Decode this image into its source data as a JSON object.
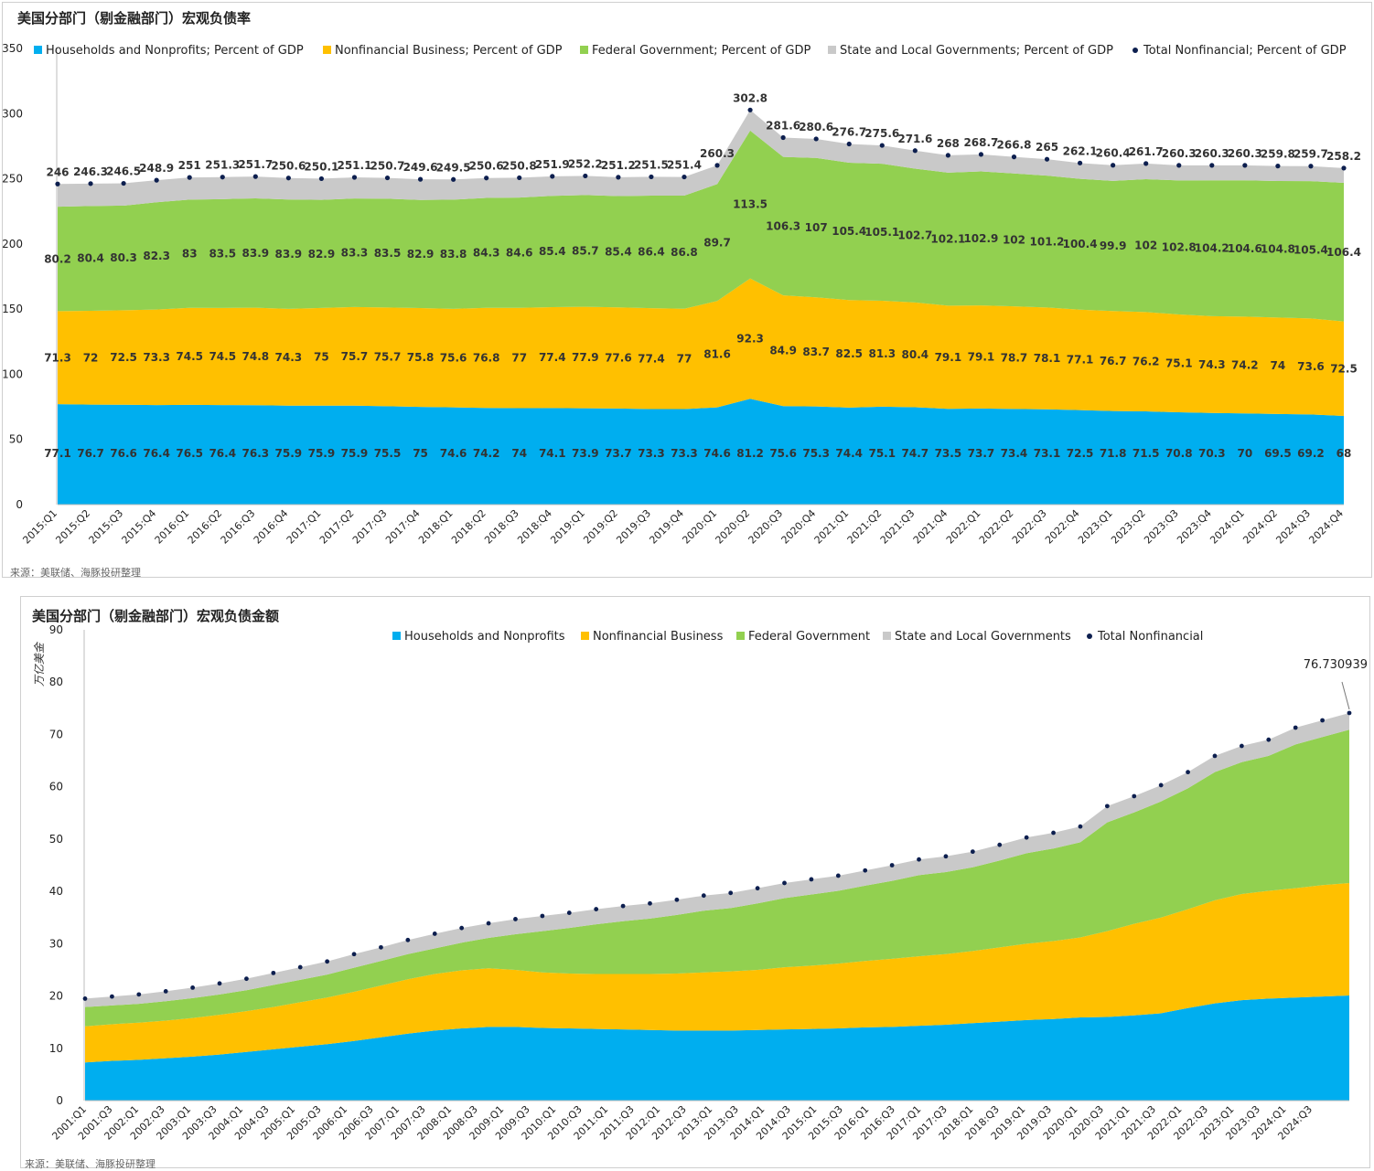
{
  "chart_data": [
    {
      "type": "area",
      "title": "美国分部门（剔金融部门）宏观负债率",
      "source": "来源：美联储、海豚投研整理",
      "ylim": [
        0,
        350
      ],
      "yticks": [
        "0",
        "50",
        "100",
        "150",
        "200",
        "250",
        "300",
        "350"
      ],
      "legend_position": "top",
      "categories": [
        "2015:Q1",
        "2015:Q2",
        "2015:Q3",
        "2015:Q4",
        "2016:Q1",
        "2016:Q2",
        "2016:Q3",
        "2016:Q4",
        "2017:Q1",
        "2017:Q2",
        "2017:Q3",
        "2017:Q4",
        "2018:Q1",
        "2018:Q2",
        "2018:Q3",
        "2018:Q4",
        "2019:Q1",
        "2019:Q2",
        "2019:Q3",
        "2019:Q4",
        "2020:Q1",
        "2020:Q2",
        "2020:Q3",
        "2020:Q4",
        "2021:Q1",
        "2021:Q2",
        "2021:Q3",
        "2021:Q4",
        "2022:Q1",
        "2022:Q2",
        "2022:Q3",
        "2022:Q4",
        "2023:Q1",
        "2023:Q2",
        "2023:Q3",
        "2023:Q4",
        "2024:Q1",
        "2024:Q2",
        "2024:Q3",
        "2024:Q4"
      ],
      "series": [
        {
          "name": "Households and Nonprofits; Percent of GDP",
          "color": "#00aeef",
          "values": [
            77.1,
            76.7,
            76.6,
            76.4,
            76.5,
            76.4,
            76.3,
            75.9,
            75.9,
            75.9,
            75.5,
            75,
            74.6,
            74.2,
            74,
            74.1,
            73.9,
            73.7,
            73.3,
            73.3,
            74.6,
            81.2,
            75.6,
            75.3,
            74.4,
            75.1,
            74.7,
            73.5,
            73.7,
            73.4,
            73.1,
            72.5,
            71.8,
            71.5,
            70.8,
            70.3,
            70,
            69.5,
            69.2,
            68
          ]
        },
        {
          "name": "Nonfinancial Business; Percent of GDP",
          "color": "#ffc000",
          "values": [
            71.3,
            72,
            72.5,
            73.3,
            74.5,
            74.5,
            74.8,
            74.3,
            75,
            75.7,
            75.7,
            75.8,
            75.6,
            76.8,
            77,
            77.4,
            77.9,
            77.6,
            77.4,
            77,
            81.6,
            92.3,
            84.9,
            83.7,
            82.5,
            81.3,
            80.4,
            79.1,
            79.1,
            78.7,
            78.1,
            77.1,
            76.7,
            76.2,
            75.1,
            74.3,
            74.2,
            74,
            73.6,
            72.5
          ]
        },
        {
          "name": "Federal Government; Percent of GDP",
          "color": "#92d050",
          "values": [
            80.2,
            80.4,
            80.3,
            82.3,
            83,
            83.5,
            83.9,
            83.9,
            82.9,
            83.3,
            83.5,
            82.9,
            83.8,
            84.3,
            84.6,
            85.4,
            85.7,
            85.4,
            86.4,
            86.8,
            89.7,
            113.5,
            106.3,
            107,
            105.4,
            105.1,
            102.7,
            102.1,
            102.9,
            102,
            101.2,
            100.4,
            99.9,
            102,
            102.8,
            104.2,
            104.6,
            104.8,
            105.4,
            106.4
          ]
        },
        {
          "name": "State and Local Governments; Percent of GDP",
          "color": "#c9c9c9",
          "values": [
            17.4,
            17.2,
            17.1,
            16.9,
            17,
            16.9,
            16.7,
            16.5,
            16.3,
            16.2,
            16,
            15.9,
            15.5,
            15.3,
            15.2,
            15,
            14.7,
            14.5,
            14.4,
            14.3,
            14.4,
            15.8,
            14.8,
            14.6,
            14.4,
            14.1,
            13.8,
            13.3,
            13,
            12.7,
            12.6,
            12.1,
            12,
            12,
            11.6,
            11.5,
            11.5,
            11.5,
            11.5,
            11.3
          ]
        },
        {
          "name": "Total Nonfinancial; Percent of GDP",
          "color": "#0d1f4f",
          "markers": true,
          "values": [
            246,
            246.3,
            246.5,
            248.9,
            251,
            251.3,
            251.7,
            250.6,
            250.1,
            251.1,
            250.7,
            249.6,
            249.5,
            250.6,
            250.8,
            251.9,
            252.2,
            251.2,
            251.5,
            251.4,
            260.3,
            302.8,
            281.6,
            280.6,
            276.7,
            275.6,
            271.6,
            268,
            268.7,
            266.8,
            265,
            262.1,
            260.4,
            261.7,
            260.3,
            260.3,
            260.3,
            259.8,
            259.7,
            258.2
          ]
        }
      ]
    },
    {
      "type": "area",
      "title": "美国分部门（剔金融部门）宏观负债金额",
      "source": "来源：美联储、海豚投研整理",
      "ylabel": "万亿美金",
      "ylim": [
        0,
        90
      ],
      "yticks": [
        "0",
        "10",
        "20",
        "30",
        "40",
        "50",
        "60",
        "70",
        "80",
        "90"
      ],
      "legend_position": "top",
      "annotation": "76.730939",
      "categories": [
        "2001:Q1",
        "2001:Q3",
        "2002:Q1",
        "2002:Q3",
        "2003:Q1",
        "2003:Q3",
        "2004:Q1",
        "2004:Q3",
        "2005:Q1",
        "2005:Q3",
        "2006:Q1",
        "2006:Q3",
        "2007:Q1",
        "2007:Q3",
        "2008:Q1",
        "2008:Q3",
        "2009:Q1",
        "2009:Q3",
        "2010:Q1",
        "2010:Q3",
        "2011:Q1",
        "2011:Q3",
        "2012:Q1",
        "2012:Q3",
        "2013:Q1",
        "2013:Q3",
        "2014:Q1",
        "2014:Q3",
        "2015:Q1",
        "2015:Q3",
        "2016:Q1",
        "2016:Q3",
        "2017:Q1",
        "2017:Q3",
        "2018:Q1",
        "2018:Q3",
        "2019:Q1",
        "2019:Q3",
        "2020:Q1",
        "2020:Q3",
        "2021:Q1",
        "2021:Q3",
        "2022:Q1",
        "2022:Q3",
        "2023:Q1",
        "2023:Q3",
        "2024:Q1",
        "2024:Q3"
      ],
      "x_start": "2001:Q1",
      "x_end": "2024:Q4",
      "series": [
        {
          "name": "Households and Nonprofits",
          "color": "#00aeef",
          "values": [
            7.3,
            7.6,
            7.8,
            8.1,
            8.4,
            8.8,
            9.3,
            9.8,
            10.3,
            10.8,
            11.4,
            12.1,
            12.8,
            13.4,
            13.8,
            14.1,
            14.1,
            13.9,
            13.8,
            13.7,
            13.6,
            13.5,
            13.4,
            13.4,
            13.4,
            13.5,
            13.6,
            13.7,
            13.8,
            14.0,
            14.1,
            14.3,
            14.5,
            14.8,
            15.1,
            15.4,
            15.6,
            15.9,
            16.0,
            16.3,
            16.7,
            17.7,
            18.6,
            19.2,
            19.5,
            19.7,
            19.9,
            20.1
          ]
        },
        {
          "name": "Nonfinancial Business",
          "color": "#ffc000",
          "values": [
            6.9,
            7.0,
            7.1,
            7.2,
            7.4,
            7.6,
            7.8,
            8.1,
            8.5,
            8.9,
            9.4,
            9.9,
            10.4,
            10.8,
            11.1,
            11.2,
            10.9,
            10.6,
            10.5,
            10.5,
            10.6,
            10.7,
            10.9,
            11.1,
            11.3,
            11.5,
            11.9,
            12.1,
            12.4,
            12.7,
            13.0,
            13.3,
            13.5,
            13.8,
            14.2,
            14.6,
            14.9,
            15.3,
            16.4,
            17.5,
            18.3,
            18.9,
            19.7,
            20.3,
            20.6,
            20.9,
            21.3,
            21.5
          ]
        },
        {
          "name": "Federal Government",
          "color": "#92d050",
          "values": [
            3.7,
            3.6,
            3.6,
            3.7,
            3.8,
            3.9,
            4.0,
            4.2,
            4.3,
            4.4,
            4.6,
            4.7,
            4.8,
            4.9,
            5.3,
            5.8,
            6.8,
            7.9,
            8.7,
            9.5,
            10.1,
            10.6,
            11.2,
            11.8,
            12.1,
            12.7,
            13.2,
            13.6,
            13.9,
            14.4,
            14.9,
            15.5,
            15.7,
            16.0,
            16.6,
            17.3,
            17.7,
            18.2,
            20.8,
            21.3,
            22.2,
            23.1,
            24.5,
            25.2,
            25.8,
            27.5,
            28.3,
            29.3
          ]
        },
        {
          "name": "State and Local Governments",
          "color": "#c9c9c9",
          "values": [
            1.6,
            1.7,
            1.8,
            1.9,
            2.0,
            2.1,
            2.2,
            2.3,
            2.4,
            2.5,
            2.6,
            2.6,
            2.7,
            2.8,
            2.8,
            2.8,
            2.9,
            2.9,
            2.9,
            2.9,
            2.9,
            2.9,
            2.9,
            2.9,
            2.9,
            2.9,
            2.9,
            2.9,
            2.9,
            2.9,
            3.0,
            3.0,
            3.0,
            3.0,
            3.0,
            3.0,
            3.0,
            3.0,
            3.1,
            3.1,
            3.1,
            3.1,
            3.1,
            3.1,
            3.1,
            3.2,
            3.2,
            3.2
          ]
        },
        {
          "name": "Total Nonfinancial",
          "color": "#0d1f4f",
          "markers": true,
          "values": [
            19.5,
            19.9,
            20.3,
            20.9,
            21.6,
            22.4,
            23.3,
            24.4,
            25.5,
            26.6,
            28.0,
            29.3,
            30.7,
            31.9,
            33.0,
            33.9,
            34.7,
            35.3,
            35.9,
            36.6,
            37.2,
            37.7,
            38.4,
            39.2,
            39.7,
            40.6,
            41.6,
            42.3,
            43.0,
            44.0,
            45.0,
            46.1,
            46.7,
            47.6,
            48.9,
            50.3,
            51.2,
            52.4,
            56.3,
            58.2,
            60.3,
            62.8,
            65.9,
            67.8,
            69.0,
            71.3,
            72.7,
            74.1
          ]
        }
      ]
    }
  ]
}
